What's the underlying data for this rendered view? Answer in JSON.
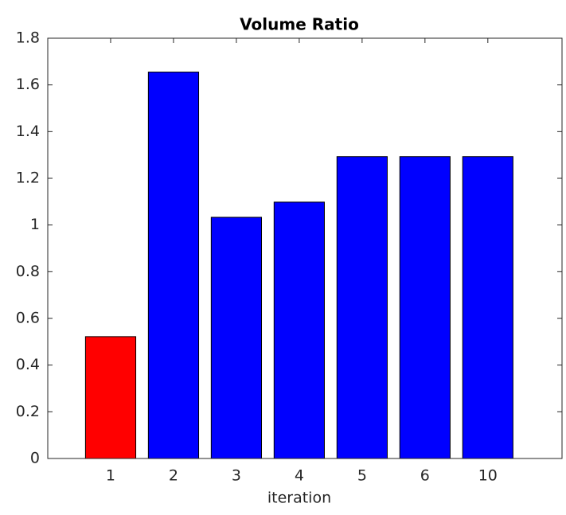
{
  "chart_data": {
    "type": "bar",
    "title": "Volume Ratio",
    "x_label": "iteration",
    "categories": [
      "1",
      "2",
      "3",
      "4",
      "5",
      "6",
      "10"
    ],
    "values": [
      0.522,
      1.655,
      1.033,
      1.098,
      1.293,
      1.293,
      1.293
    ],
    "colors": [
      "#ff0000",
      "#0000ff",
      "#0000ff",
      "#0000ff",
      "#0000ff",
      "#0000ff",
      "#0000ff"
    ],
    "ylim": [
      0,
      1.8
    ],
    "yticks": [
      0,
      0.2,
      0.4,
      0.6,
      0.8,
      1,
      1.2,
      1.4,
      1.6,
      1.8
    ],
    "grid": false
  }
}
